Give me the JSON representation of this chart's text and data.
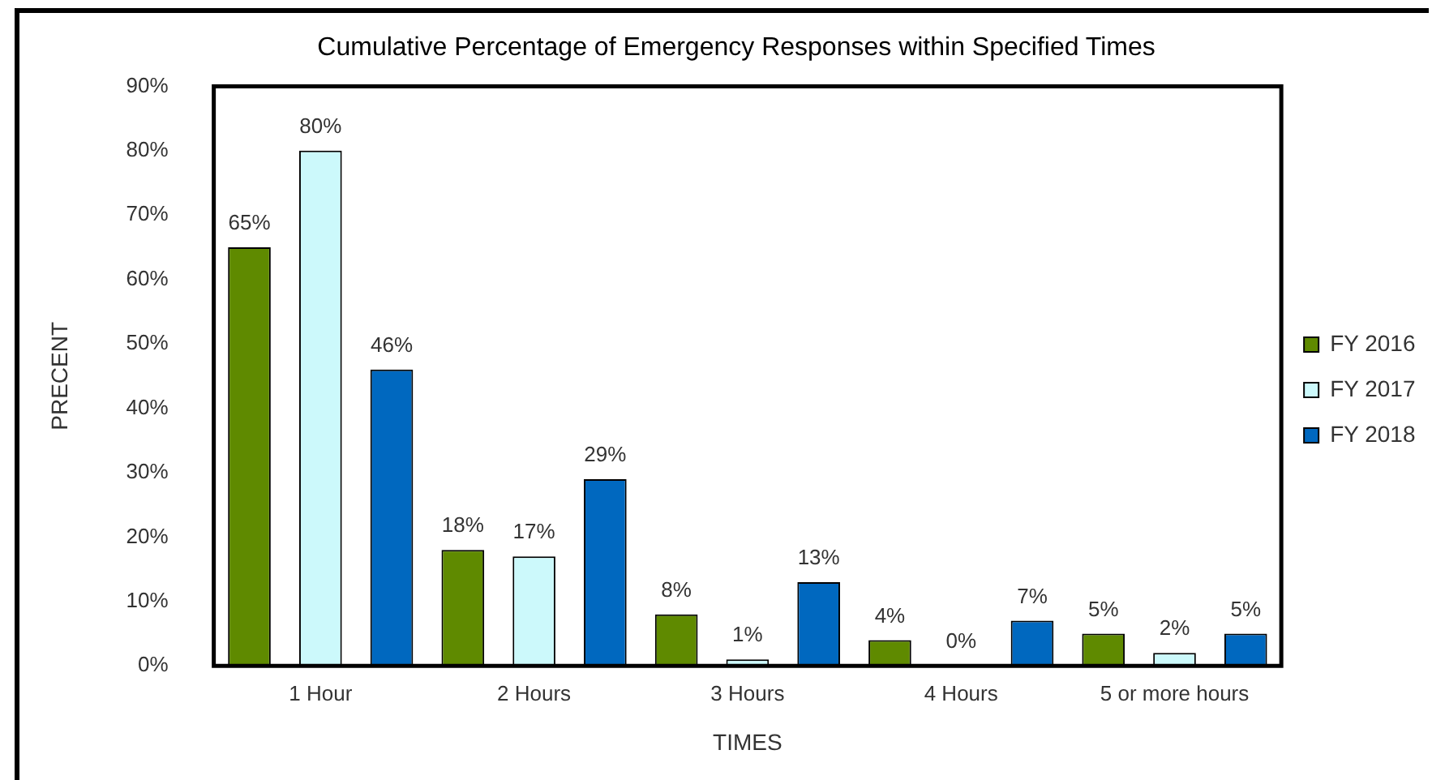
{
  "chart_data": {
    "type": "bar",
    "title": "Cumulative Percentage of Emergency Responses within Specified Times",
    "xlabel": "TIMES",
    "ylabel": "PRECENT",
    "categories": [
      "1 Hour",
      "2 Hours",
      "3 Hours",
      "4 Hours",
      "5 or more hours"
    ],
    "series": [
      {
        "name": "FY 2016",
        "color": "#5f8a00",
        "values": [
          65,
          18,
          8,
          4,
          5
        ],
        "value_labels": [
          "65%",
          "18%",
          "8%",
          "4%",
          "5%"
        ]
      },
      {
        "name": "FY 2017",
        "color": "#ccf9fb",
        "values": [
          80,
          17,
          1,
          0,
          2
        ],
        "value_labels": [
          "80%",
          "17%",
          "1%",
          "0%",
          "2%"
        ]
      },
      {
        "name": "FY 2018",
        "color": "#0068bf",
        "values": [
          46,
          29,
          13,
          7,
          5
        ],
        "value_labels": [
          "46%",
          "29%",
          "13%",
          "7%",
          "5%"
        ]
      }
    ],
    "ylim": [
      0,
      90
    ],
    "yticks": [
      {
        "value": 0,
        "label": "0%"
      },
      {
        "value": 10,
        "label": "10%"
      },
      {
        "value": 20,
        "label": "20%"
      },
      {
        "value": 30,
        "label": "30%"
      },
      {
        "value": 40,
        "label": "40%"
      },
      {
        "value": 50,
        "label": "50%"
      },
      {
        "value": 60,
        "label": "60%"
      },
      {
        "value": 70,
        "label": "70%"
      },
      {
        "value": 80,
        "label": "80%"
      },
      {
        "value": 90,
        "label": "90%"
      }
    ],
    "grid": false,
    "legend": "right"
  }
}
